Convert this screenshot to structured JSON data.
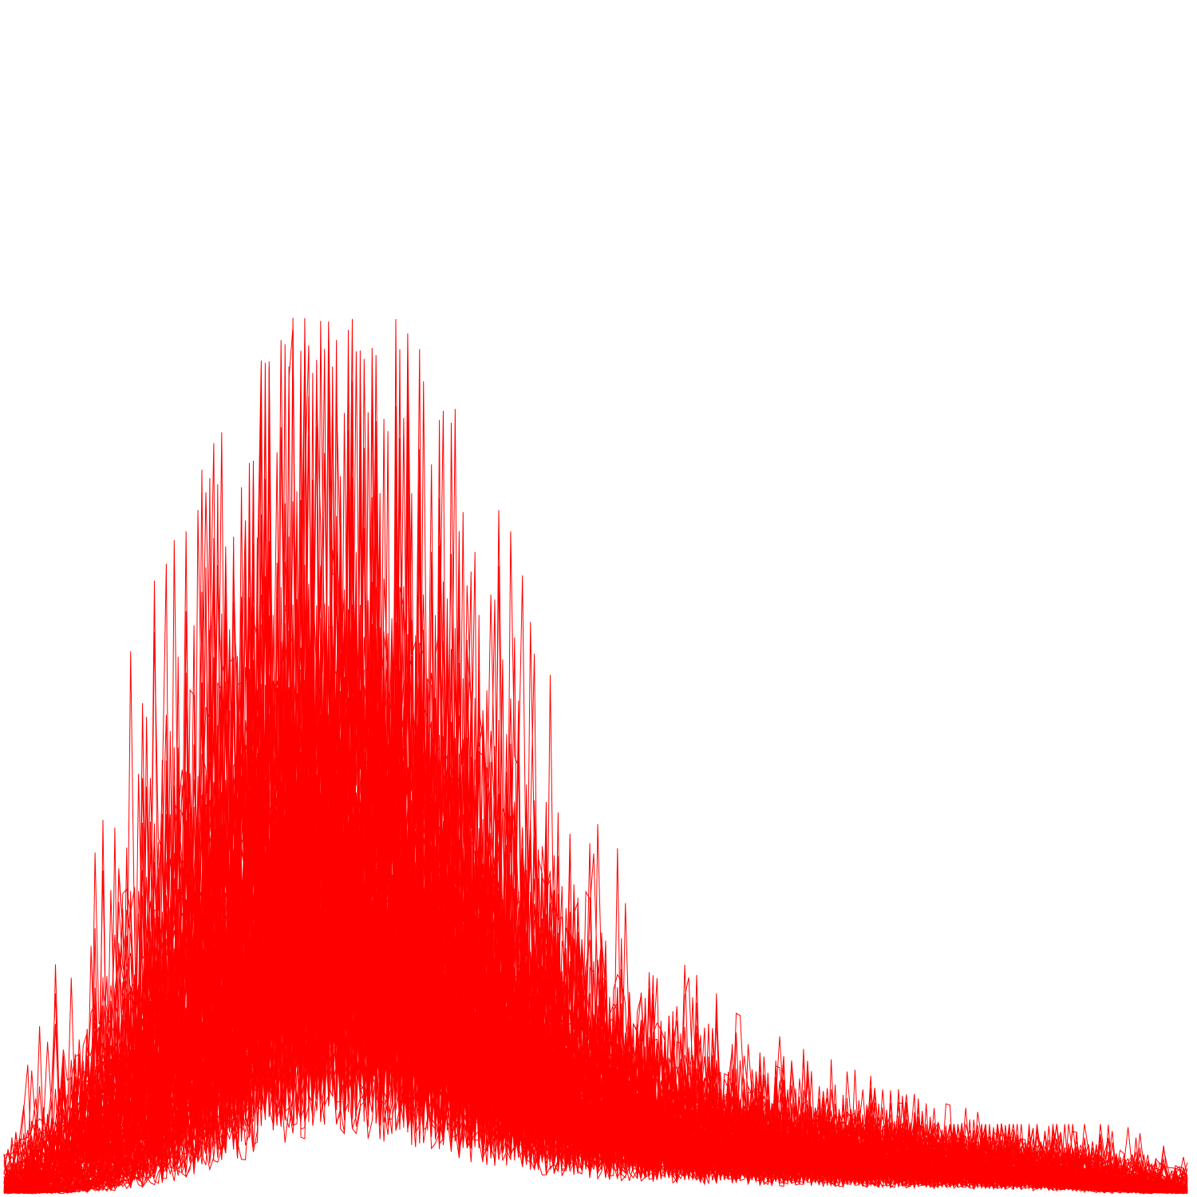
{
  "chart_data": {
    "type": "line",
    "title": "",
    "xlabel": "",
    "ylabel": "",
    "xlim": [
      0,
      1
    ],
    "ylim": [
      0,
      1
    ],
    "grid": false,
    "axes_visible": false,
    "legend": "none",
    "series_color": "#ff0000",
    "series_count": 120,
    "samples_per_series": 300,
    "description_of_shape": "many overlapping noisy density traces, peak near x=0.28, long right tail",
    "envelope": {
      "x": [
        0.0,
        0.05,
        0.1,
        0.15,
        0.2,
        0.25,
        0.28,
        0.3,
        0.35,
        0.4,
        0.45,
        0.5,
        0.55,
        0.6,
        0.7,
        0.8,
        0.9,
        1.0
      ],
      "y_max": [
        0.02,
        0.08,
        0.28,
        0.55,
        0.75,
        0.9,
        1.0,
        0.95,
        0.85,
        0.6,
        0.42,
        0.3,
        0.22,
        0.18,
        0.12,
        0.08,
        0.08,
        0.01
      ],
      "y_typical": [
        0.005,
        0.02,
        0.07,
        0.16,
        0.27,
        0.34,
        0.36,
        0.35,
        0.3,
        0.22,
        0.15,
        0.1,
        0.075,
        0.06,
        0.045,
        0.035,
        0.025,
        0.005
      ]
    }
  }
}
